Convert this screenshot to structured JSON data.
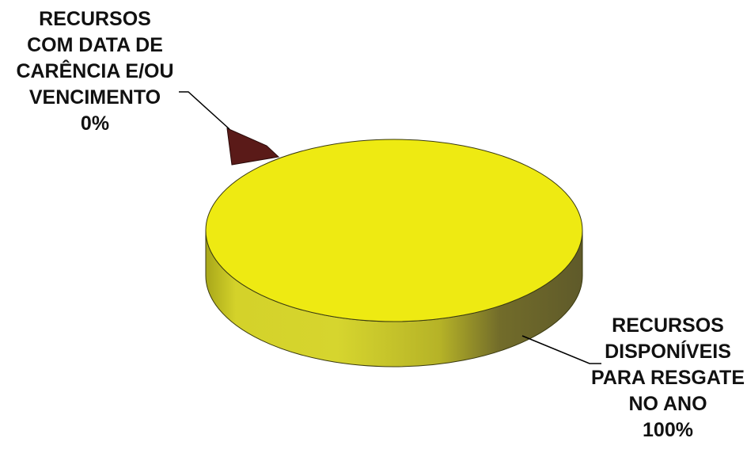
{
  "chart_data": {
    "type": "pie",
    "title": "",
    "slices": [
      {
        "label_lines": [
          "RECURSOS",
          "COM DATA DE",
          "CARÊNCIA E/OU",
          "VENCIMENTO"
        ],
        "percent_label": "0%",
        "value": 0,
        "color": "#5a1a18"
      },
      {
        "label_lines": [
          "RECURSOS",
          "DISPONÍVEIS",
          "PARA RESGATE",
          "NO ANO"
        ],
        "percent_label": "100%",
        "value": 100,
        "color": "#eeea12"
      }
    ],
    "style": "3d",
    "legend": "none"
  }
}
